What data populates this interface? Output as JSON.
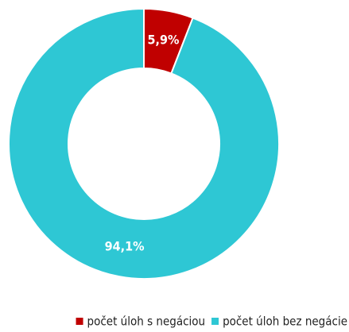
{
  "chart_data": {
    "type": "donut",
    "categories": [
      "počet úloh s negáciou",
      "počet úloh bez negácie"
    ],
    "values": [
      5.9,
      94.1
    ],
    "value_labels": [
      "5,9%",
      "94,1%"
    ],
    "colors": [
      "#c00000",
      "#2ec7d4"
    ],
    "legend": "bottom"
  }
}
